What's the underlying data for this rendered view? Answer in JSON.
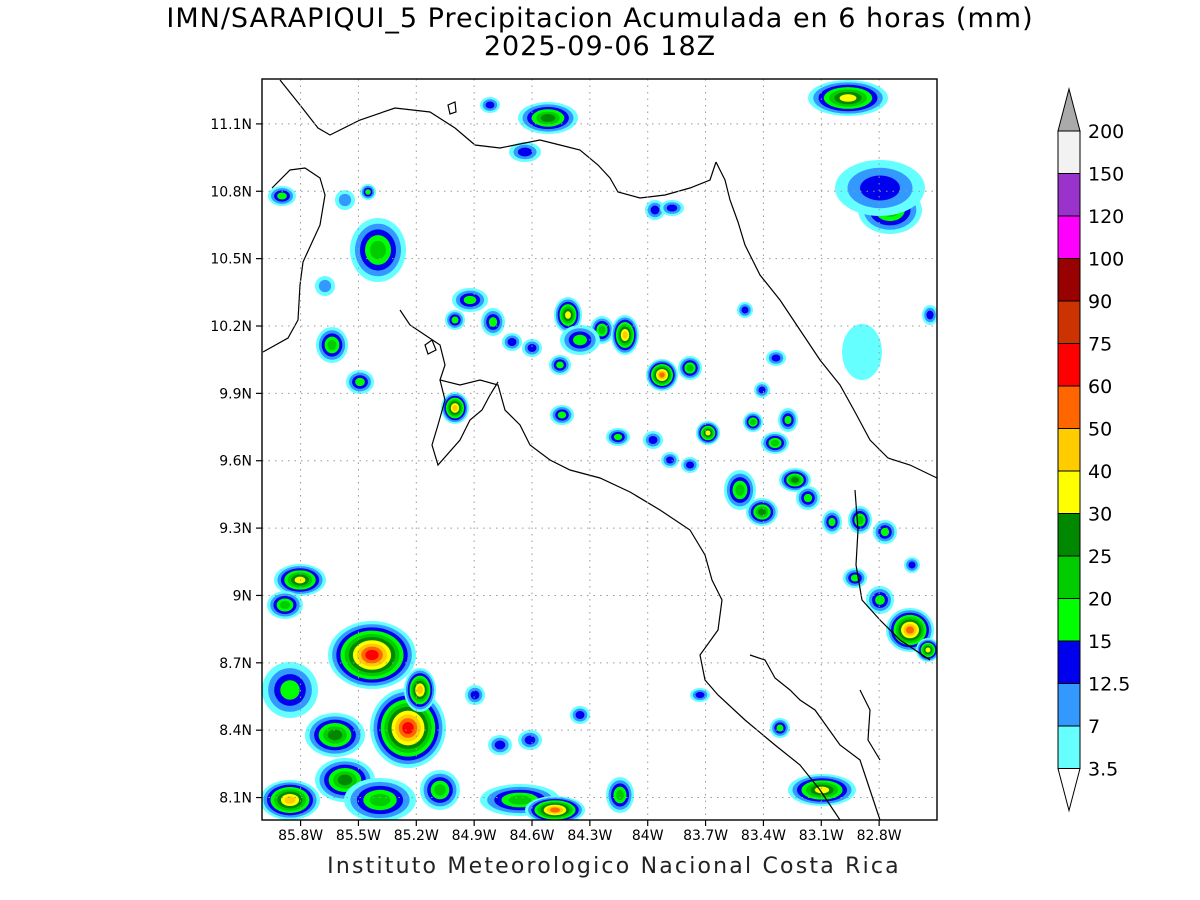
{
  "title": {
    "line1": "IMN/SARAPIQUI_5 Precipitacion Acumulada en 6 horas (mm)",
    "line2": "2025-09-06 18Z"
  },
  "footer": "Instituto Meteorologico Nacional Costa Rica",
  "map": {
    "lon_range": [
      -86.0,
      -82.5
    ],
    "lat_range": [
      8.0,
      11.3
    ],
    "lat_ticks": [
      "11.1N",
      "10.8N",
      "10.5N",
      "10.2N",
      "9.9N",
      "9.6N",
      "9.3N",
      "9N",
      "8.7N",
      "8.4N",
      "8.1N"
    ],
    "lat_values": [
      11.1,
      10.8,
      10.5,
      10.2,
      9.9,
      9.6,
      9.3,
      9.0,
      8.7,
      8.4,
      8.1
    ],
    "lon_ticks": [
      "85.8W",
      "85.5W",
      "85.2W",
      "84.9W",
      "84.6W",
      "84.3W",
      "84W",
      "83.7W",
      "83.4W",
      "83.1W",
      "82.8W"
    ],
    "lon_values": [
      -85.8,
      -85.5,
      -85.2,
      -84.9,
      -84.6,
      -84.3,
      -84.0,
      -83.7,
      -83.4,
      -83.1,
      -82.8
    ],
    "grid": true
  },
  "colorbar": {
    "labels": [
      "3.5",
      "7",
      "12.5",
      "15",
      "20",
      "25",
      "30",
      "40",
      "50",
      "60",
      "75",
      "90",
      "100",
      "120",
      "150",
      "200"
    ],
    "colors": [
      "#66ffff",
      "#3399ff",
      "#0000ee",
      "#00ff00",
      "#00cc00",
      "#008800",
      "#ffff00",
      "#ffcc00",
      "#ff6600",
      "#ff0000",
      "#cc3300",
      "#990000",
      "#ff00ff",
      "#9933cc",
      "#f2f2f2",
      "#aaaaaa"
    ]
  }
}
